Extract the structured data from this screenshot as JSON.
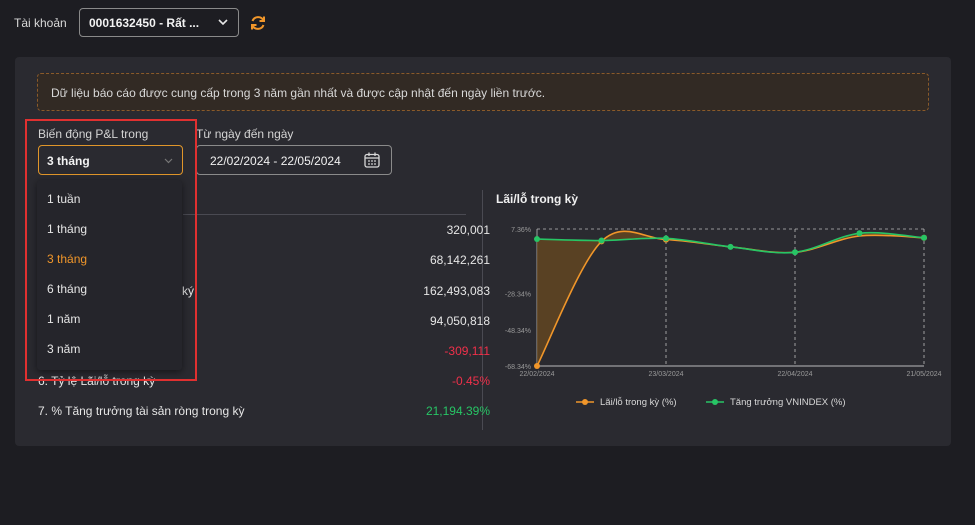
{
  "account": {
    "label": "Tài khoản",
    "selected": "0001632450 - Rất ..."
  },
  "notice": "Dữ liệu báo cáo được cung cấp trong 3 năm gần nhất và được cập nhật đến ngày liền trước.",
  "filters": {
    "period_label": "Biến động P&L trong",
    "period_value": "3 tháng",
    "date_label": "Từ ngày đến ngày",
    "date_value": "22/02/2024 - 22/05/2024"
  },
  "dropdown": {
    "options": [
      "1 tuần",
      "1 tháng",
      "3 tháng",
      "6 tháng",
      "1 năm",
      "3 năm"
    ],
    "selected_index": 2
  },
  "table": {
    "rows": [
      {
        "label": "",
        "value": "320,001",
        "status": "normal"
      },
      {
        "label": "",
        "value": "68,142,261",
        "status": "normal"
      },
      {
        "label": "ký",
        "value": "162,493,083",
        "status": "normal"
      },
      {
        "label": "",
        "value": "94,050,818",
        "status": "normal"
      },
      {
        "label": "",
        "value": "-309,111",
        "status": "negative"
      },
      {
        "label": "6. Tỷ lệ Lãi/lỗ trong kỳ",
        "value": "-0.45%",
        "status": "negative"
      },
      {
        "label": "7. % Tăng trưởng tài sản ròng trong kỳ",
        "value": "21,194.39%",
        "status": "positive"
      }
    ]
  },
  "colors": {
    "accent": "#f0962a",
    "negative": "#f0304a",
    "positive": "#27c565",
    "highlight_box": "#e03030"
  },
  "chart_data": {
    "type": "line",
    "title": "Lãi/lỗ trong kỳ",
    "x": [
      "22/02/2024",
      "07/03/2024",
      "23/03/2024",
      "08/04/2024",
      "22/04/2024",
      "07/05/2024",
      "21/05/2024"
    ],
    "x_tick_labels": [
      "22/02/2024",
      "23/03/2024",
      "22/04/2024",
      "21/05/2024"
    ],
    "y_tick_labels": [
      "7.36%",
      "-28.34%",
      "-48.34%",
      "-68.34%"
    ],
    "ylim": [
      -68.34,
      7.36
    ],
    "series": [
      {
        "name": "Lãi/lỗ trong kỳ (%)",
        "color": "#f0962a",
        "values": [
          -68.34,
          0.5,
          1.5,
          -2.5,
          -5.5,
          3.5,
          2.5
        ]
      },
      {
        "name": "Tăng trưởng VNINDEX (%)",
        "color": "#27c565",
        "values": [
          1.8,
          1.0,
          2.2,
          -2.5,
          -5.5,
          5.0,
          2.5
        ]
      }
    ],
    "legend": "bottom",
    "grid": true
  }
}
